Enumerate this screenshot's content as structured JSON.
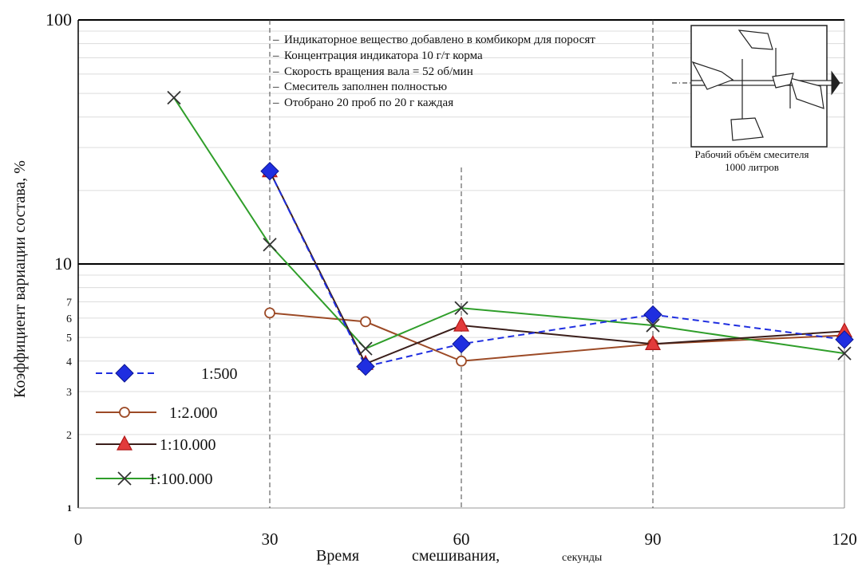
{
  "chart_data": {
    "type": "line",
    "ylabel": "Коэффициент вариации состава,  %",
    "xlabel_parts": [
      "Время",
      "смешивания,",
      "секунды"
    ],
    "yscale": "log",
    "ylim": [
      1,
      100
    ],
    "xlim": [
      0,
      120
    ],
    "x_ticks": [
      "0",
      "30",
      "60",
      "90",
      "120"
    ],
    "y_ticks_major": [
      "100",
      "10",
      "1"
    ],
    "y_ticks_minor": [
      "7",
      "6",
      "5",
      "4",
      "3",
      "2"
    ],
    "series": [
      {
        "name": "1:500",
        "color": "#1f2ee0",
        "marker": "diamond",
        "dash": true,
        "x": [
          30,
          45,
          60,
          90,
          120
        ],
        "y": [
          24,
          3.8,
          4.7,
          6.2,
          4.9
        ]
      },
      {
        "name": "1:2.000",
        "color": "#9c4a26",
        "marker": "circle",
        "dash": false,
        "x": [
          30,
          45,
          60,
          90,
          120
        ],
        "y": [
          6.3,
          5.8,
          4.0,
          4.7,
          5.1
        ]
      },
      {
        "name": "1:10.000",
        "color": "#3b1e1a",
        "marker": "triangle",
        "dash": false,
        "x": [
          30,
          45,
          60,
          90,
          120
        ],
        "y": [
          24,
          3.9,
          5.6,
          4.7,
          5.3
        ]
      },
      {
        "name": "1:100.000",
        "color": "#2f9e2a",
        "marker": "x",
        "dash": false,
        "x": [
          15,
          30,
          45,
          60,
          90,
          120
        ],
        "y": [
          48,
          12,
          4.5,
          6.6,
          5.6,
          4.3
        ]
      }
    ],
    "notes": [
      "Индикаторное вещество добавлено в комбикорм для поросят",
      "Концентрация индикатора  10 г/т корма",
      "Скорость вращения вала = 52 об/мин",
      "Смеситель заполнен полностью",
      "Отобрано  20 проб по 20 г  каждая"
    ],
    "mixer_caption": [
      "Рабочий объём смесителя",
      "1000 литров"
    ],
    "legend_placement": "left-bottom",
    "grid": true
  }
}
